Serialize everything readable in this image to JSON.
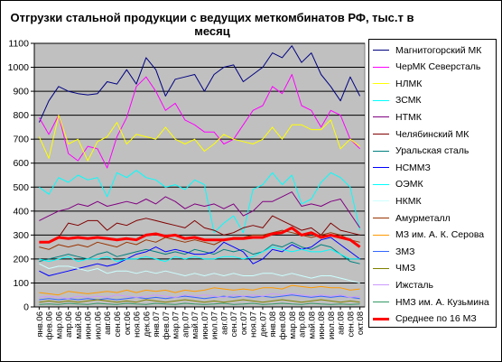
{
  "chart_data": {
    "type": "line",
    "title": "Отгрузки стальной продукции с ведущих меткомбинатов РФ, тыс.т в месяц",
    "ylim": [
      0,
      1100
    ],
    "ytick_step": 100,
    "grid": true,
    "legend_position": "right",
    "plot_background": "#c0c0c0",
    "categories": [
      "янв.06",
      "фев.06",
      "мар.06",
      "апр.06",
      "май.06",
      "июн.06",
      "июл.06",
      "авг.06",
      "сен.06",
      "окт.06",
      "ноя.06",
      "дек.06",
      "янв.07",
      "фев.07",
      "мар.07",
      "апр.07",
      "май.07",
      "июн.07",
      "июл.07",
      "авг.07",
      "сен.07",
      "окт.07",
      "ноя.07",
      "дек.07",
      "янв.08",
      "фев.08",
      "мар.08",
      "апр.08",
      "май.08",
      "июн.08",
      "июл.08",
      "авг.08",
      "сен.08",
      "окт.08"
    ],
    "series": [
      {
        "name": "Магнитогорский МК",
        "color": "#000080",
        "width": 1,
        "values": [
          770,
          860,
          920,
          900,
          890,
          885,
          890,
          940,
          930,
          990,
          930,
          1040,
          990,
          880,
          950,
          960,
          970,
          900,
          970,
          1000,
          1010,
          940,
          970,
          1000,
          1060,
          1040,
          1090,
          1020,
          1060,
          970,
          920,
          860,
          960,
          880
        ]
      },
      {
        "name": "ЧерМК Северсталь",
        "color": "#ff00ff",
        "width": 1,
        "values": [
          790,
          720,
          800,
          640,
          610,
          670,
          660,
          580,
          710,
          790,
          920,
          960,
          900,
          820,
          850,
          780,
          760,
          730,
          730,
          680,
          700,
          760,
          820,
          840,
          920,
          890,
          970,
          840,
          820,
          750,
          820,
          800,
          700,
          660
        ]
      },
      {
        "name": "НЛМК",
        "color": "#ffff00",
        "width": 1,
        "values": [
          710,
          620,
          800,
          680,
          700,
          610,
          690,
          710,
          770,
          680,
          720,
          710,
          700,
          750,
          700,
          680,
          700,
          650,
          680,
          720,
          700,
          690,
          680,
          700,
          750,
          700,
          760,
          760,
          740,
          740,
          780,
          660,
          700,
          670
        ]
      },
      {
        "name": "ЗСМК",
        "color": "#00ffff",
        "width": 1,
        "values": [
          500,
          470,
          540,
          520,
          550,
          530,
          540,
          460,
          560,
          540,
          570,
          540,
          530,
          500,
          510,
          490,
          530,
          510,
          310,
          350,
          380,
          310,
          490,
          510,
          560,
          510,
          550,
          430,
          450,
          520,
          560,
          540,
          500,
          320
        ]
      },
      {
        "name": "НТМК",
        "color": "#800080",
        "width": 1,
        "values": [
          360,
          380,
          400,
          410,
          430,
          420,
          440,
          420,
          430,
          440,
          430,
          450,
          430,
          460,
          440,
          410,
          430,
          420,
          430,
          410,
          430,
          380,
          400,
          440,
          440,
          460,
          480,
          420,
          430,
          420,
          440,
          450,
          390,
          330
        ]
      },
      {
        "name": "Челябинский МК",
        "color": "#800000",
        "width": 1,
        "values": [
          270,
          270,
          290,
          350,
          340,
          360,
          360,
          320,
          350,
          340,
          360,
          370,
          360,
          350,
          340,
          330,
          360,
          330,
          320,
          300,
          310,
          330,
          340,
          330,
          380,
          360,
          340,
          320,
          330,
          300,
          350,
          320,
          310,
          300
        ]
      },
      {
        "name": "Уральская сталь",
        "color": "#008080",
        "width": 1,
        "values": [
          190,
          200,
          210,
          220,
          210,
          200,
          220,
          230,
          210,
          220,
          230,
          240,
          230,
          220,
          230,
          220,
          240,
          230,
          220,
          240,
          230,
          240,
          220,
          230,
          260,
          250,
          270,
          250,
          240,
          260,
          250,
          220,
          190,
          180
        ]
      },
      {
        "name": "НСММЗ",
        "color": "#0000ff",
        "width": 1,
        "values": [
          150,
          130,
          140,
          150,
          160,
          170,
          180,
          170,
          180,
          200,
          220,
          230,
          250,
          230,
          240,
          230,
          220,
          220,
          230,
          270,
          250,
          230,
          180,
          200,
          240,
          230,
          260,
          240,
          250,
          280,
          290,
          260,
          230,
          200
        ]
      },
      {
        "name": "ОЭМК",
        "color": "#00ffff",
        "width": 1,
        "values": [
          200,
          190,
          200,
          210,
          190,
          200,
          200,
          210,
          190,
          200,
          200,
          210,
          200,
          190,
          210,
          200,
          210,
          200,
          200,
          210,
          210,
          200,
          210,
          230,
          250,
          240,
          230,
          240,
          230,
          230,
          240,
          220,
          200,
          200
        ]
      },
      {
        "name": "НКМК",
        "color": "#ccffff",
        "width": 1,
        "values": [
          180,
          160,
          170,
          170,
          160,
          150,
          160,
          140,
          150,
          150,
          140,
          150,
          140,
          150,
          140,
          130,
          140,
          130,
          140,
          130,
          140,
          130,
          130,
          140,
          140,
          130,
          140,
          130,
          120,
          130,
          130,
          120,
          110,
          100
        ]
      },
      {
        "name": "Амурметалл",
        "color": "#993300",
        "width": 1,
        "values": [
          250,
          240,
          260,
          250,
          260,
          250,
          270,
          260,
          250,
          270,
          260,
          280,
          270,
          290,
          280,
          270,
          280,
          270,
          260,
          280,
          290,
          290,
          300,
          300,
          310,
          320,
          310,
          300,
          290,
          300,
          310,
          300,
          280,
          270
        ]
      },
      {
        "name": "МЗ им. А. К. Серова",
        "color": "#ff9900",
        "width": 1,
        "values": [
          60,
          55,
          50,
          65,
          60,
          55,
          60,
          65,
          60,
          70,
          60,
          70,
          65,
          70,
          60,
          70,
          65,
          70,
          80,
          75,
          70,
          75,
          70,
          80,
          80,
          75,
          90,
          85,
          80,
          85,
          80,
          80,
          70,
          75
        ]
      },
      {
        "name": "ЗМЗ",
        "color": "#3366ff",
        "width": 1,
        "values": [
          30,
          35,
          30,
          35,
          30,
          35,
          30,
          35,
          30,
          35,
          40,
          35,
          40,
          35,
          40,
          45,
          40,
          35,
          40,
          45,
          40,
          45,
          40,
          45,
          40,
          45,
          50,
          45,
          40,
          45,
          40,
          45,
          40,
          35
        ]
      },
      {
        "name": "ЧМЗ",
        "color": "#808000",
        "width": 1,
        "values": [
          20,
          25,
          20,
          25,
          20,
          25,
          30,
          25,
          20,
          25,
          20,
          30,
          25,
          20,
          25,
          30,
          25,
          20,
          25,
          20,
          25,
          30,
          25,
          20,
          25,
          30,
          25,
          20,
          25,
          30,
          25,
          20,
          25,
          20
        ]
      },
      {
        "name": "Ижсталь",
        "color": "#cc99ff",
        "width": 1,
        "values": [
          40,
          45,
          40,
          35,
          45,
          40,
          45,
          40,
          50,
          45,
          40,
          45,
          50,
          45,
          40,
          50,
          45,
          50,
          45,
          40,
          50,
          45,
          50,
          45,
          55,
          50,
          55,
          50,
          45,
          50,
          45,
          50,
          40,
          45
        ]
      },
      {
        "name": "НМЗ им. А. Кузьмина",
        "color": "#339966",
        "width": 1,
        "values": [
          10,
          12,
          10,
          15,
          12,
          10,
          15,
          12,
          10,
          15,
          12,
          10,
          15,
          12,
          10,
          15,
          12,
          10,
          12,
          15,
          10,
          12,
          15,
          10,
          12,
          15,
          12,
          10,
          15,
          12,
          10,
          12,
          10,
          12
        ]
      },
      {
        "name": "Среднее по 16 МЗ",
        "color": "#ff0000",
        "width": 3,
        "values": [
          270,
          270,
          290,
          285,
          290,
          285,
          290,
          285,
          280,
          285,
          280,
          300,
          305,
          295,
          300,
          285,
          290,
          280,
          280,
          280,
          285,
          285,
          290,
          290,
          305,
          310,
          330,
          300,
          310,
          290,
          300,
          290,
          280,
          250
        ]
      }
    ]
  }
}
